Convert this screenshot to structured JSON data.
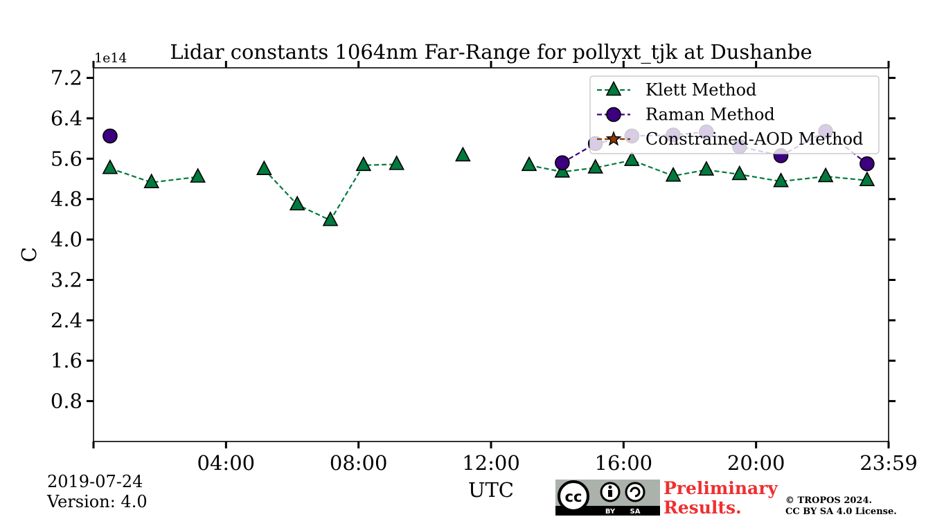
{
  "chart_data": {
    "type": "line",
    "title": "Lidar constants 1064nm Far-Range for pollyxt_tjk at Dushanbe",
    "xlabel": "UTC",
    "ylabel": "C",
    "y_multiplier_label": "1e14",
    "xlim": [
      0,
      24
    ],
    "ylim": [
      0,
      7.4
    ],
    "x_ticks": [
      0,
      4,
      8,
      12,
      16,
      20,
      24
    ],
    "x_tick_labels": [
      "",
      "04:00",
      "08:00",
      "12:00",
      "16:00",
      "20:00",
      "23:59"
    ],
    "y_ticks": [
      0.8,
      1.6,
      2.4,
      3.2,
      4.0,
      4.8,
      5.6,
      6.4,
      7.2
    ],
    "y_tick_labels": [
      "0.8",
      "1.6",
      "2.4",
      "3.2",
      "4.0",
      "4.8",
      "5.6",
      "6.4",
      "7.2"
    ],
    "legend_position": "top-right",
    "series": [
      {
        "name": "Klett Method",
        "color": "#007a3d",
        "marker": "triangle",
        "segments": [
          [
            [
              0.5,
              5.41
            ],
            [
              1.75,
              5.13
            ],
            [
              3.15,
              5.24
            ]
          ],
          [
            [
              5.15,
              5.39
            ],
            [
              6.15,
              4.69
            ],
            [
              7.15,
              4.38
            ],
            [
              8.15,
              5.47
            ],
            [
              9.15,
              5.49
            ]
          ],
          [
            [
              11.15,
              5.66
            ]
          ],
          [
            [
              13.15,
              5.47
            ],
            [
              14.15,
              5.34
            ],
            [
              15.15,
              5.42
            ],
            [
              16.25,
              5.57
            ],
            [
              17.5,
              5.26
            ],
            [
              18.5,
              5.38
            ],
            [
              19.5,
              5.29
            ],
            [
              20.75,
              5.15
            ],
            [
              22.1,
              5.25
            ],
            [
              23.35,
              5.17
            ]
          ]
        ]
      },
      {
        "name": "Raman Method",
        "color": "#3d0080",
        "marker": "circle",
        "segments": [
          [
            [
              0.5,
              6.05
            ]
          ],
          [
            [
              14.15,
              5.52
            ],
            [
              15.15,
              5.9
            ],
            [
              16.25,
              6.05
            ],
            [
              17.5,
              6.07
            ],
            [
              18.5,
              6.13
            ],
            [
              19.5,
              5.84
            ],
            [
              20.75,
              5.66
            ],
            [
              22.1,
              6.14
            ],
            [
              23.35,
              5.5
            ]
          ]
        ]
      },
      {
        "name": "Constrained-AOD Method",
        "color": "#8b3a00",
        "marker": "star",
        "segments": []
      }
    ]
  },
  "footer": {
    "date": "2019-07-24",
    "version": "Version: 4.0",
    "preliminary_line1": "Preliminary",
    "preliminary_line2": "Results.",
    "copyright_line1": "© TROPOS 2024.",
    "copyright_line2": "CC BY SA 4.0 License.",
    "cc_logo_text": "cc",
    "cc_by_text": "BY",
    "cc_sa_text": "SA"
  }
}
